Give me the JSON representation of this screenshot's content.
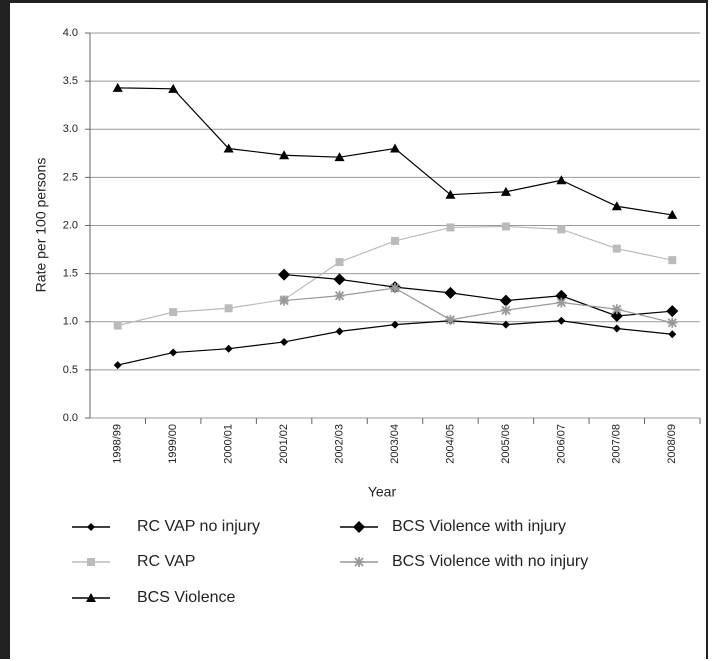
{
  "chart_data": {
    "type": "line",
    "x_label": "Year",
    "y_label": "Rate per 100 persons",
    "categories": [
      "1998/99",
      "1999/00",
      "2000/01",
      "2001/02",
      "2002/03",
      "2003/04",
      "2004/05",
      "2005/06",
      "2006/07",
      "2007/08",
      "2008/09"
    ],
    "ylim": [
      0,
      4
    ],
    "yticks": [
      {
        "value": 0,
        "label": "0.0"
      },
      {
        "value": 0.5,
        "label": "0.5"
      },
      {
        "value": 1,
        "label": "1.0"
      },
      {
        "value": 1.5,
        "label": "1.5"
      },
      {
        "value": 2,
        "label": "2.0"
      },
      {
        "value": 2.5,
        "label": "2.5"
      },
      {
        "value": 3,
        "label": "3.0"
      },
      {
        "value": 3.5,
        "label": "3.5"
      },
      {
        "value": 4,
        "label": "4.0"
      }
    ],
    "grid": true,
    "series": [
      {
        "name": "RC VAP no injury",
        "color": "#000000",
        "marker": "diamond",
        "values": [
          0.55,
          0.68,
          0.72,
          0.79,
          0.9,
          0.97,
          1.01,
          0.97,
          1.01,
          0.93,
          0.87
        ]
      },
      {
        "name": "RC VAP",
        "color": "#bbbbbb",
        "marker": "square",
        "values": [
          0.96,
          1.1,
          1.14,
          1.23,
          1.62,
          1.84,
          1.98,
          1.99,
          1.96,
          1.76,
          1.64
        ]
      },
      {
        "name": "BCS Violence",
        "color": "#000000",
        "marker": "triangle",
        "values": [
          3.43,
          3.42,
          2.8,
          2.73,
          2.71,
          2.8,
          2.32,
          2.35,
          2.47,
          2.2,
          2.11
        ]
      },
      {
        "name": "BCS Violence with injury",
        "color": "#000000",
        "marker": "big-diamond",
        "values": [
          null,
          null,
          null,
          1.49,
          1.44,
          1.36,
          1.3,
          1.22,
          1.27,
          1.06,
          1.11
        ]
      },
      {
        "name": "BCS Violence with no injury",
        "color": "#999999",
        "marker": "star",
        "values": [
          null,
          null,
          null,
          1.22,
          1.27,
          1.35,
          1.02,
          1.12,
          1.2,
          1.13,
          0.99
        ]
      }
    ]
  }
}
